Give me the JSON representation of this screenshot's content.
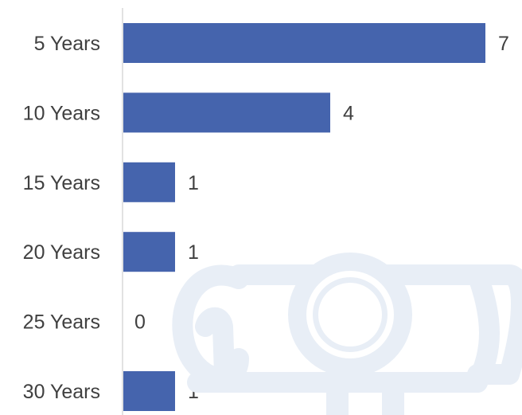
{
  "chart_data": {
    "type": "bar",
    "orientation": "horizontal",
    "categories": [
      "5 Years",
      "10 Years",
      "15 Years",
      "20 Years",
      "25 Years",
      "30 Years"
    ],
    "values": [
      7,
      4,
      1,
      1,
      0,
      1
    ],
    "title": "",
    "xlabel": "",
    "ylabel": "",
    "xlim": [
      0,
      7
    ],
    "grid": false,
    "legend": "none",
    "data_labels": true
  },
  "colors": {
    "bar": "#4564ad",
    "axis_line": "#d9d9d9",
    "label_text": "#404040",
    "watermark": "#e8eef6"
  },
  "watermark": {
    "icon": "diploma-scroll-icon"
  }
}
